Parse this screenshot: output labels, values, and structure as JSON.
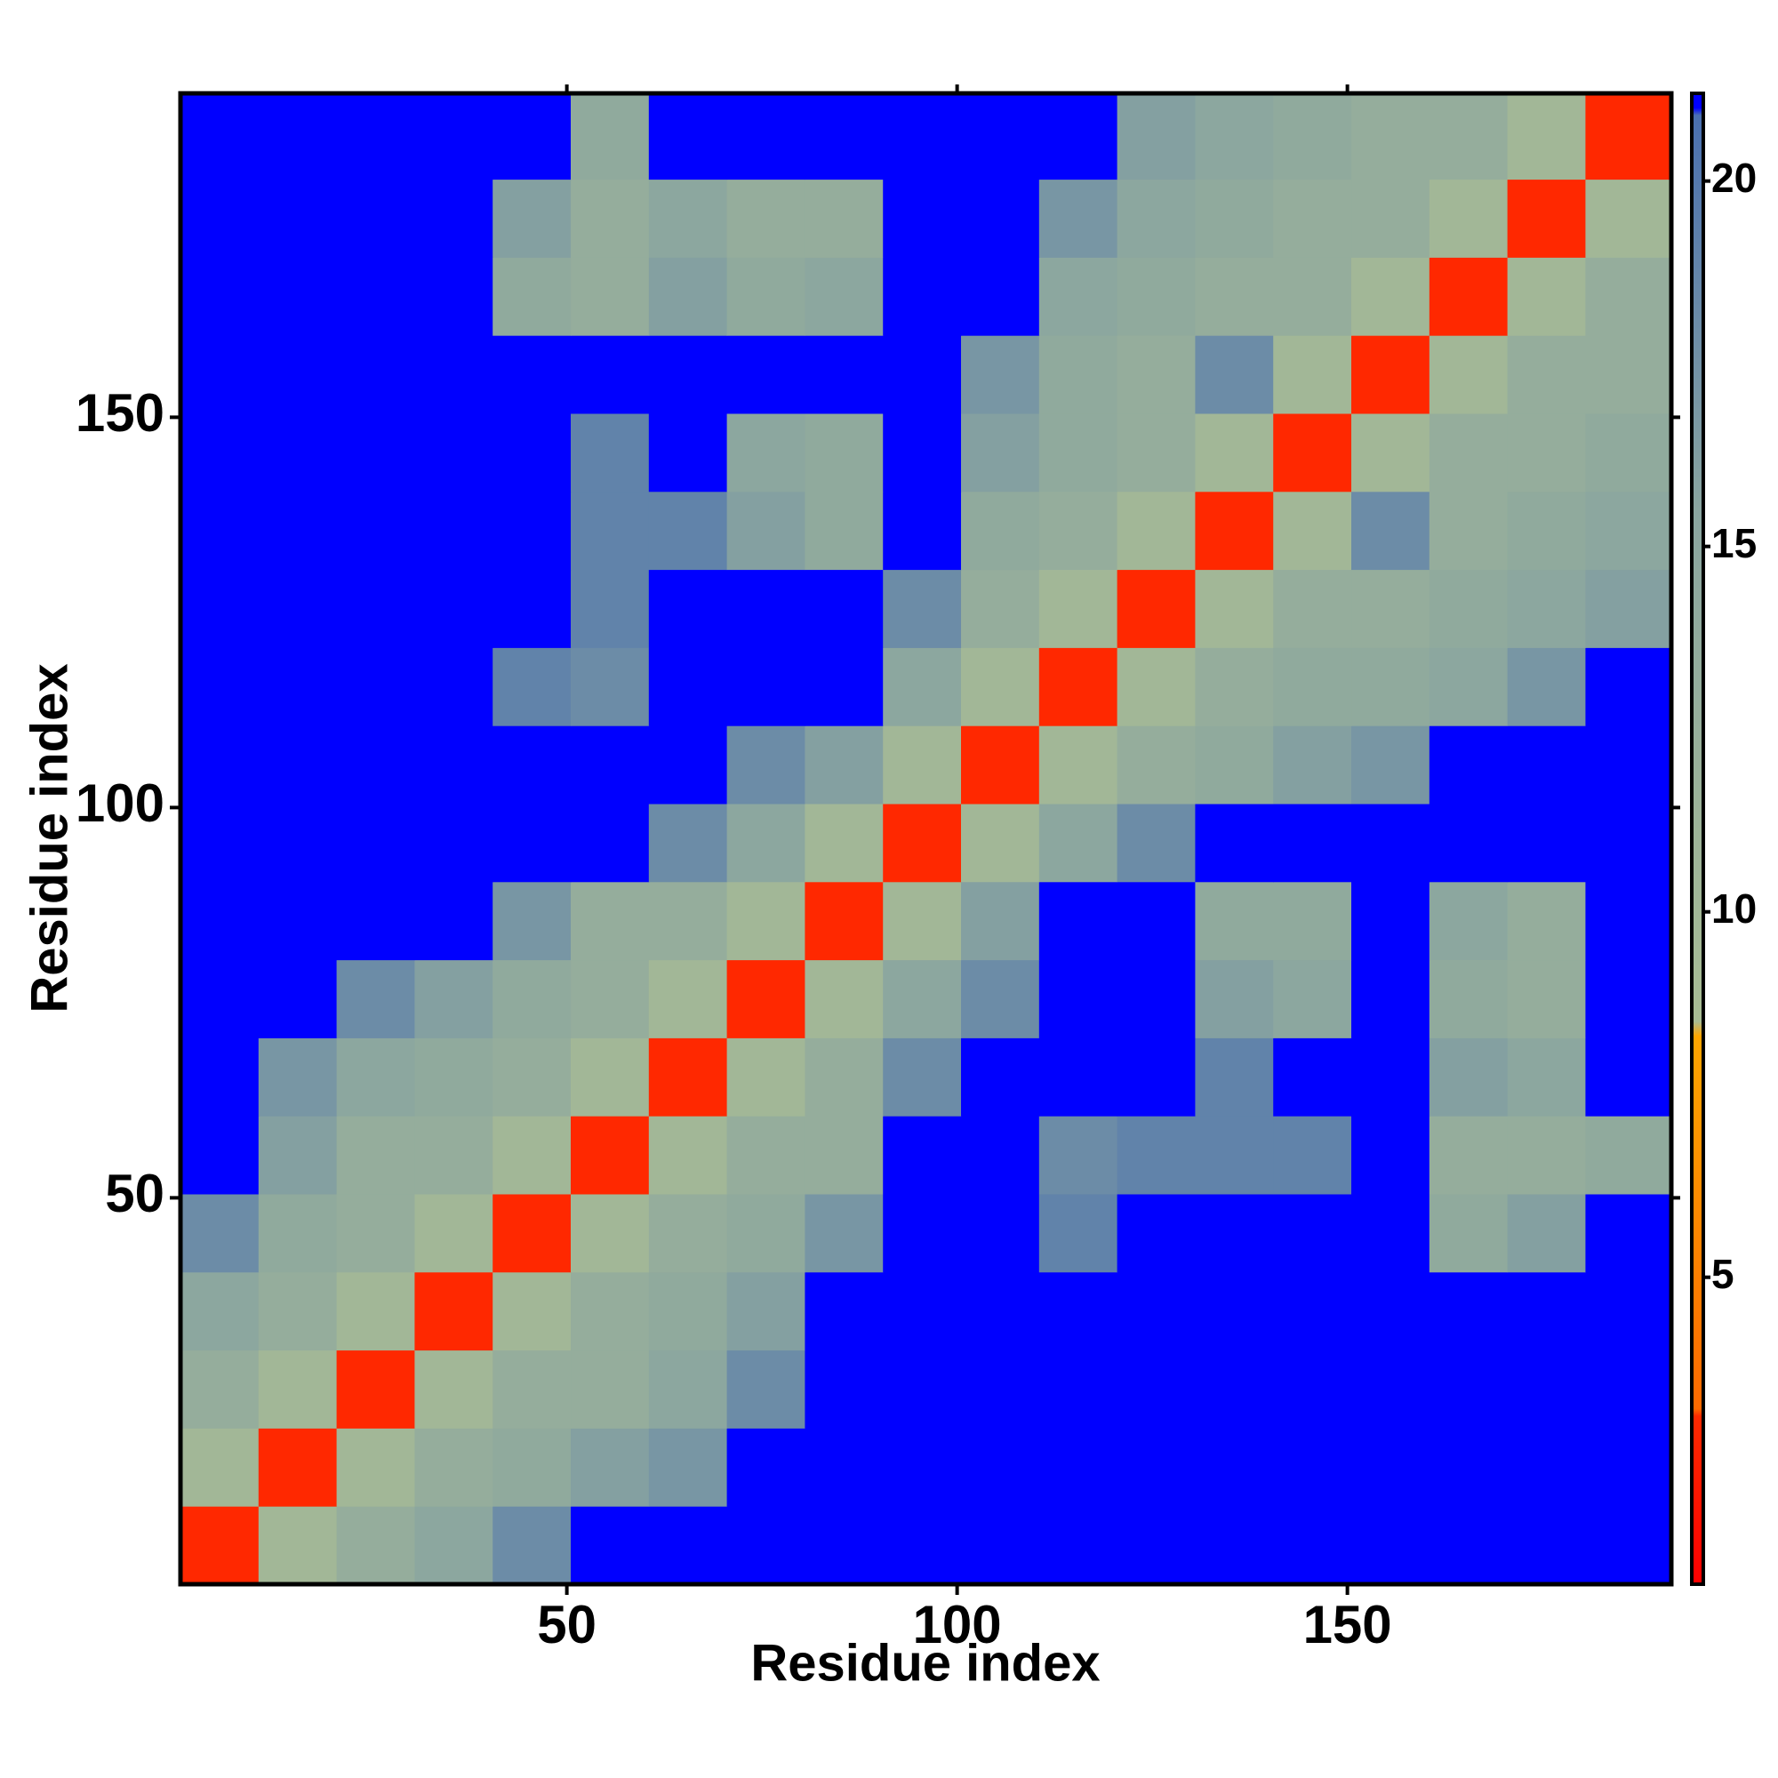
{
  "chart_data": {
    "type": "heatmap",
    "xlabel": "Residue index",
    "ylabel": "Residue index",
    "xlim": [
      0.5,
      191.5
    ],
    "ylim": [
      0.5,
      191.5
    ],
    "xticks": [
      50,
      100,
      150
    ],
    "yticks": [
      50,
      100,
      150
    ],
    "x_bins": [
      0.5,
      10.5,
      20.5,
      30.5,
      40.5,
      50.5,
      60.5,
      70.5,
      80.5,
      90.5,
      100.5,
      110.5,
      120.5,
      130.5,
      140.5,
      150.5,
      160.5,
      170.5,
      180.5,
      191.5
    ],
    "y_bins": [
      0.5,
      10.5,
      20.5,
      30.5,
      40.5,
      50.5,
      60.5,
      70.5,
      80.5,
      90.5,
      100.5,
      110.5,
      120.5,
      130.5,
      140.5,
      150.5,
      160.5,
      170.5,
      180.5,
      191.5
    ],
    "z": [
      [
        3,
        10,
        13,
        15,
        18,
        25,
        25,
        25,
        25,
        25,
        25,
        25,
        25,
        25,
        25,
        25,
        25,
        25,
        25
      ],
      [
        10,
        3,
        10,
        13,
        14,
        16,
        17,
        25,
        25,
        25,
        25,
        25,
        25,
        25,
        25,
        25,
        25,
        25,
        25
      ],
      [
        13,
        10,
        3,
        10,
        13,
        13,
        15,
        18,
        25,
        25,
        25,
        25,
        25,
        25,
        25,
        25,
        25,
        25,
        25
      ],
      [
        15,
        13,
        10,
        3,
        10,
        13,
        14,
        16,
        25,
        25,
        25,
        25,
        25,
        25,
        25,
        25,
        25,
        25,
        25
      ],
      [
        18,
        14,
        13,
        10,
        3,
        10,
        13,
        14,
        17,
        25,
        25,
        19,
        25,
        25,
        25,
        25,
        14,
        16,
        25
      ],
      [
        25,
        16,
        13,
        13,
        10,
        3,
        10,
        13,
        13,
        25,
        25,
        18,
        19,
        19,
        19,
        25,
        13,
        13,
        14
      ],
      [
        25,
        17,
        15,
        14,
        13,
        10,
        3,
        10,
        13,
        18,
        25,
        25,
        25,
        19,
        25,
        25,
        16,
        15,
        25
      ],
      [
        25,
        25,
        18,
        16,
        14,
        13,
        10,
        3,
        10,
        15,
        18,
        25,
        25,
        16,
        15,
        25,
        14,
        13,
        25
      ],
      [
        25,
        25,
        25,
        25,
        17,
        13,
        13,
        10,
        3,
        10,
        16,
        25,
        25,
        14,
        14,
        25,
        15,
        13,
        25
      ],
      [
        25,
        25,
        25,
        25,
        25,
        25,
        18,
        15,
        10,
        3,
        10,
        15,
        18,
        25,
        25,
        25,
        25,
        25,
        25
      ],
      [
        25,
        25,
        25,
        25,
        25,
        25,
        25,
        18,
        16,
        10,
        3,
        10,
        13,
        14,
        16,
        17,
        25,
        25,
        25
      ],
      [
        25,
        25,
        25,
        25,
        19,
        18,
        25,
        25,
        25,
        15,
        10,
        3,
        10,
        13,
        14,
        14,
        15,
        17,
        25
      ],
      [
        25,
        25,
        25,
        25,
        25,
        19,
        25,
        25,
        25,
        18,
        13,
        10,
        3,
        10,
        13,
        13,
        14,
        15,
        16
      ],
      [
        25,
        25,
        25,
        25,
        25,
        19,
        19,
        16,
        14,
        25,
        14,
        13,
        10,
        3,
        10,
        18,
        13,
        14,
        15
      ],
      [
        25,
        25,
        25,
        25,
        25,
        19,
        25,
        15,
        14,
        25,
        16,
        14,
        13,
        10,
        3,
        10,
        13,
        13,
        14
      ],
      [
        25,
        25,
        25,
        25,
        25,
        25,
        25,
        25,
        25,
        25,
        17,
        14,
        13,
        18,
        10,
        3,
        10,
        13,
        13
      ],
      [
        25,
        25,
        25,
        25,
        14,
        13,
        16,
        14,
        15,
        25,
        25,
        15,
        14,
        13,
        13,
        10,
        3,
        10,
        13
      ],
      [
        25,
        25,
        25,
        25,
        16,
        13,
        15,
        13,
        13,
        25,
        25,
        17,
        15,
        14,
        13,
        13,
        10,
        3,
        10
      ],
      [
        25,
        25,
        25,
        25,
        25,
        14,
        25,
        25,
        25,
        25,
        25,
        25,
        16,
        15,
        14,
        13,
        13,
        10,
        3
      ]
    ],
    "zlim": [
      0.8,
      21.2
    ],
    "zticks": [
      5,
      10,
      15,
      20
    ],
    "colorscale": [
      [
        0.8,
        "#ff0000"
      ],
      [
        3.1,
        "#ff2a00"
      ],
      [
        3.2,
        "#ff6a00"
      ],
      [
        8.3,
        "#ffa500"
      ],
      [
        8.5,
        "#a8bc94"
      ],
      [
        15.5,
        "#8aa5a0"
      ],
      [
        20.9,
        "#4a70b0"
      ],
      [
        21.0,
        "#0000ff"
      ],
      [
        21.2,
        "#0000ff"
      ]
    ]
  }
}
